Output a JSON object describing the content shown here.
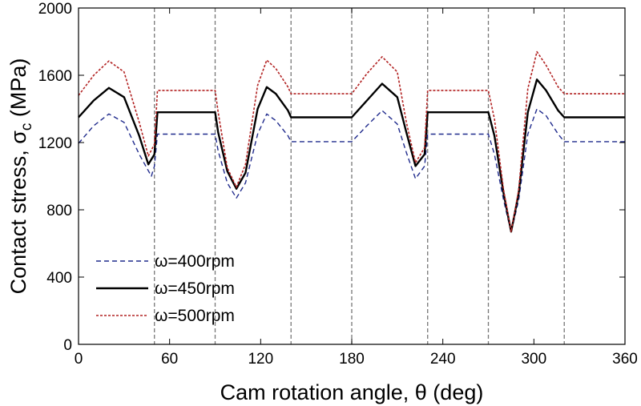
{
  "chart_data": {
    "type": "line",
    "xlabel": "Cam rotation angle, θ (deg)",
    "ylabel_parts": {
      "prefix": "Contact stress, σ",
      "sub": "c",
      "suffix": " (MPa)"
    },
    "xlim": [
      0,
      360
    ],
    "ylim": [
      0,
      2000
    ],
    "xticks": [
      0,
      60,
      120,
      180,
      240,
      300,
      360
    ],
    "yticks": [
      0,
      400,
      800,
      1200,
      1600,
      2000
    ],
    "vlines": [
      50,
      90,
      140,
      180,
      230,
      270,
      320
    ],
    "legend_position": "bottom-left",
    "series": [
      {
        "name": "ω=400rpm",
        "color": "#1f2a8c",
        "dash": "dashed",
        "points": [
          [
            0,
            1195
          ],
          [
            10,
            1300
          ],
          [
            20,
            1370
          ],
          [
            30,
            1320
          ],
          [
            40,
            1130
          ],
          [
            48,
            1000
          ],
          [
            50,
            1060
          ],
          [
            52,
            1250
          ],
          [
            90,
            1250
          ],
          [
            92,
            1150
          ],
          [
            98,
            960
          ],
          [
            104,
            870
          ],
          [
            110,
            960
          ],
          [
            118,
            1250
          ],
          [
            124,
            1370
          ],
          [
            130,
            1330
          ],
          [
            138,
            1240
          ],
          [
            140,
            1205
          ],
          [
            180,
            1205
          ],
          [
            190,
            1300
          ],
          [
            200,
            1390
          ],
          [
            210,
            1310
          ],
          [
            216,
            1140
          ],
          [
            222,
            985
          ],
          [
            228,
            1060
          ],
          [
            230,
            1250
          ],
          [
            270,
            1250
          ],
          [
            274,
            1130
          ],
          [
            280,
            860
          ],
          [
            285,
            665
          ],
          [
            290,
            860
          ],
          [
            296,
            1250
          ],
          [
            302,
            1400
          ],
          [
            308,
            1360
          ],
          [
            316,
            1250
          ],
          [
            320,
            1205
          ],
          [
            360,
            1205
          ]
        ]
      },
      {
        "name": "ω=450rpm",
        "color": "#000000",
        "dash": "solid",
        "points": [
          [
            0,
            1350
          ],
          [
            10,
            1450
          ],
          [
            20,
            1525
          ],
          [
            30,
            1470
          ],
          [
            40,
            1240
          ],
          [
            46,
            1070
          ],
          [
            50,
            1130
          ],
          [
            52,
            1380
          ],
          [
            90,
            1380
          ],
          [
            92,
            1260
          ],
          [
            98,
            1030
          ],
          [
            104,
            925
          ],
          [
            110,
            1020
          ],
          [
            118,
            1400
          ],
          [
            124,
            1530
          ],
          [
            130,
            1490
          ],
          [
            138,
            1390
          ],
          [
            140,
            1350
          ],
          [
            180,
            1350
          ],
          [
            190,
            1450
          ],
          [
            200,
            1550
          ],
          [
            210,
            1470
          ],
          [
            216,
            1260
          ],
          [
            222,
            1060
          ],
          [
            228,
            1130
          ],
          [
            230,
            1380
          ],
          [
            270,
            1380
          ],
          [
            274,
            1240
          ],
          [
            280,
            900
          ],
          [
            285,
            670
          ],
          [
            290,
            900
          ],
          [
            296,
            1380
          ],
          [
            302,
            1575
          ],
          [
            308,
            1510
          ],
          [
            316,
            1390
          ],
          [
            320,
            1350
          ],
          [
            360,
            1350
          ]
        ]
      },
      {
        "name": "ω=500rpm",
        "color": "#b22222",
        "dash": "dotted",
        "points": [
          [
            0,
            1480
          ],
          [
            10,
            1600
          ],
          [
            20,
            1685
          ],
          [
            30,
            1620
          ],
          [
            40,
            1320
          ],
          [
            46,
            1120
          ],
          [
            50,
            1190
          ],
          [
            52,
            1510
          ],
          [
            90,
            1510
          ],
          [
            92,
            1380
          ],
          [
            98,
            1050
          ],
          [
            104,
            935
          ],
          [
            110,
            1070
          ],
          [
            118,
            1540
          ],
          [
            124,
            1690
          ],
          [
            130,
            1640
          ],
          [
            138,
            1530
          ],
          [
            140,
            1490
          ],
          [
            180,
            1490
          ],
          [
            190,
            1610
          ],
          [
            200,
            1710
          ],
          [
            210,
            1620
          ],
          [
            216,
            1320
          ],
          [
            222,
            1080
          ],
          [
            228,
            1170
          ],
          [
            230,
            1510
          ],
          [
            270,
            1510
          ],
          [
            274,
            1340
          ],
          [
            280,
            920
          ],
          [
            285,
            670
          ],
          [
            290,
            920
          ],
          [
            296,
            1520
          ],
          [
            302,
            1740
          ],
          [
            308,
            1660
          ],
          [
            316,
            1530
          ],
          [
            320,
            1490
          ],
          [
            360,
            1490
          ]
        ]
      }
    ]
  }
}
